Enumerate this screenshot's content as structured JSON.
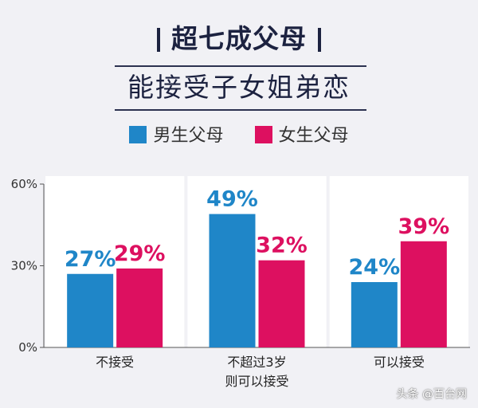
{
  "title": "超七成父母",
  "subtitle": "能接受子女姐弟恋",
  "colors": {
    "male": "#1f86c8",
    "female": "#dd1060",
    "panel": "#ffffff",
    "text": "#1c2240"
  },
  "chart_data": {
    "type": "bar",
    "title": "超七成父母",
    "subtitle": "能接受子女姐弟恋",
    "categories": [
      [
        "不接受"
      ],
      [
        "不超过3岁",
        "则可以接受"
      ],
      [
        "可以接受"
      ]
    ],
    "series": [
      {
        "name": "男生父母",
        "values": [
          27,
          49,
          24
        ],
        "labels": [
          "27%",
          "49%",
          "24%"
        ]
      },
      {
        "name": "女生父母",
        "values": [
          29,
          32,
          39
        ],
        "labels": [
          "29%",
          "32%",
          "39%"
        ]
      }
    ],
    "ylim": [
      0,
      60
    ],
    "yticks": [
      0,
      30,
      60
    ],
    "ytick_labels": [
      "0%",
      "30%",
      "60%"
    ],
    "xlabel": "",
    "ylabel": "",
    "legend": "top-center",
    "grid": false
  },
  "watermark": "头条 @百台网"
}
